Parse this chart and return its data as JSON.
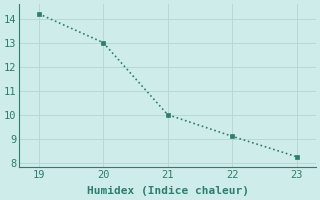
{
  "x": [
    19,
    20,
    21,
    22,
    23
  ],
  "y": [
    14.2,
    13.0,
    10.0,
    9.1,
    8.25
  ],
  "line_color": "#2e7d6e",
  "marker_color": "#2e7d6e",
  "background_color": "#ceecea",
  "grid_color": "#b8d8d4",
  "xlabel": "Humidex (Indice chaleur)",
  "xlim": [
    18.7,
    23.3
  ],
  "ylim": [
    7.8,
    14.6
  ],
  "xticks": [
    19,
    20,
    21,
    22,
    23
  ],
  "yticks": [
    8,
    9,
    10,
    11,
    12,
    13,
    14
  ],
  "xlabel_fontsize": 8,
  "tick_fontsize": 7.5,
  "line_width": 1.2,
  "marker_size": 3.5
}
